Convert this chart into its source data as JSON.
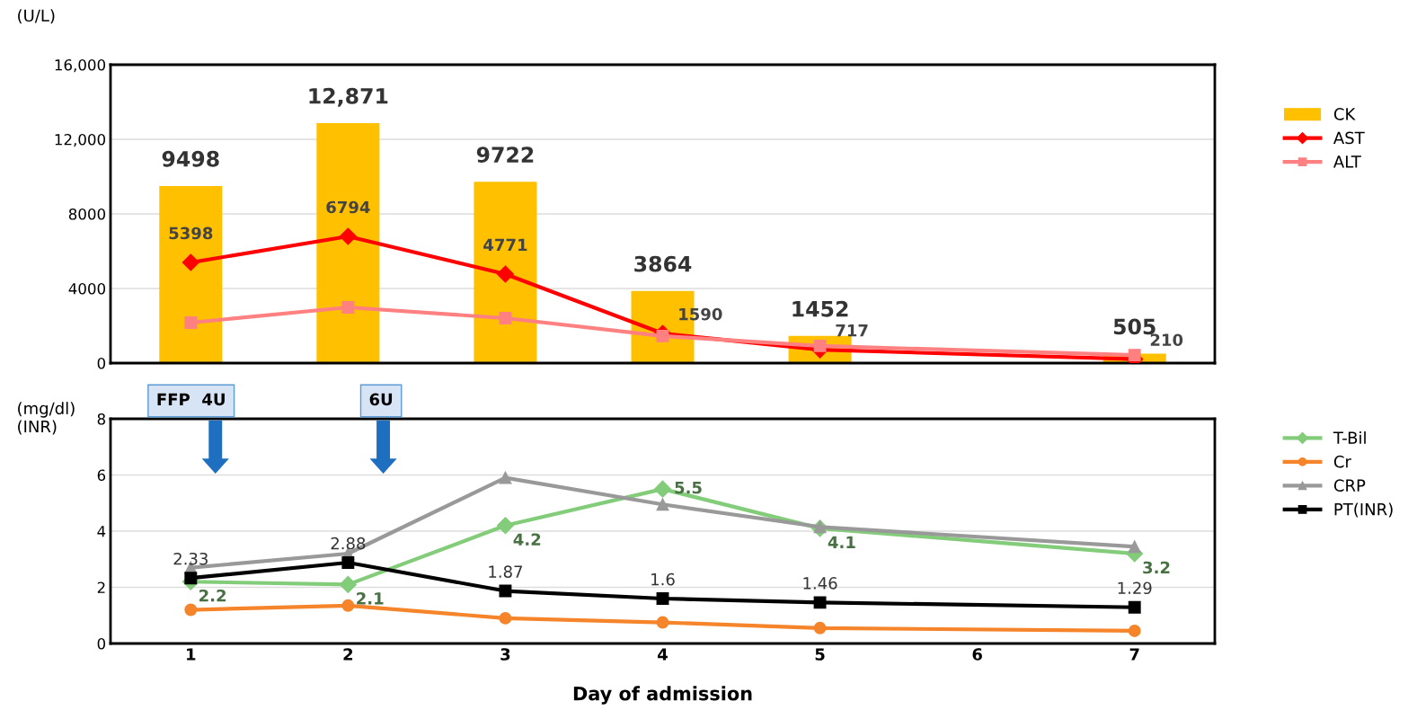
{
  "chart_data": [
    {
      "type": "bar",
      "ylabel": "(U/L)",
      "x": [
        1,
        2,
        3,
        4,
        5,
        6,
        7
      ],
      "xlim": [
        0.49,
        7.51
      ],
      "xticks": [
        1,
        2,
        3,
        4,
        5,
        6,
        7
      ],
      "ylim": [
        0,
        16000
      ],
      "yticks": [
        0,
        {
          "value": 4000,
          "label": "4000"
        },
        {
          "value": 8000,
          "label": "8000"
        },
        {
          "value": 12000,
          "label": "12,000"
        },
        {
          "value": 16000,
          "label": "16,000"
        }
      ],
      "grid": "y",
      "legend": "right",
      "tick_labels": "y",
      "series": [
        {
          "name": "CK",
          "type": "bar",
          "color": "#ffc000",
          "values": [
            9498,
            12871,
            9722,
            3864,
            1452,
            null,
            505
          ],
          "value_labels": [
            "9498",
            "12,871",
            "9722",
            "3864",
            "1452",
            null,
            "505"
          ]
        },
        {
          "name": "AST",
          "type": "line",
          "marker": "diamond",
          "color": "#ff0000",
          "values": [
            5398,
            6794,
            4771,
            1590,
            717,
            null,
            210
          ],
          "value_labels": [
            "5398",
            "6794",
            "4771",
            "1590",
            "717",
            null,
            "210"
          ]
        },
        {
          "name": "ALT",
          "type": "line",
          "marker": "square",
          "color": "#ff8080",
          "values": [
            2170,
            2990,
            2410,
            1450,
            920,
            null,
            430
          ]
        }
      ]
    },
    {
      "type": "line",
      "ylabel": "(mg/dl)\n(INR)",
      "xlabel": "Day of admission",
      "x": [
        1,
        2,
        3,
        4,
        5,
        6,
        7
      ],
      "xlim": [
        0.49,
        7.51
      ],
      "xticks": [
        1,
        2,
        3,
        4,
        5,
        6,
        7
      ],
      "ylim": [
        0,
        8
      ],
      "yticks": [
        0,
        2,
        4,
        6,
        8
      ],
      "grid": "y",
      "legend": "right",
      "annotations": [
        "FFP  4U",
        "6U"
      ],
      "series": [
        {
          "name": "T-Bil",
          "marker": "diamond",
          "color": "#82cc7a",
          "values": [
            2.2,
            2.1,
            4.2,
            5.5,
            4.1,
            null,
            3.2
          ],
          "value_labels": [
            "2.2",
            "2.1",
            "4.2",
            "5.5",
            "4.1",
            null,
            "3.2"
          ]
        },
        {
          "name": "Cr",
          "marker": "circle",
          "color": "#f5842a",
          "values": [
            1.2,
            1.35,
            0.9,
            0.75,
            0.55,
            null,
            0.45
          ]
        },
        {
          "name": "CRP",
          "marker": "triangle",
          "color": "#999999",
          "values": [
            2.7,
            3.2,
            5.9,
            4.95,
            4.15,
            null,
            3.45
          ]
        },
        {
          "name": "PT(INR)",
          "marker": "square",
          "color": "#000000",
          "values": [
            2.33,
            2.88,
            1.87,
            1.6,
            1.46,
            null,
            1.29
          ],
          "value_labels": [
            "2.33",
            "2.88",
            "1.87",
            "1.6",
            "1.46",
            null,
            "1.29"
          ]
        }
      ]
    }
  ]
}
